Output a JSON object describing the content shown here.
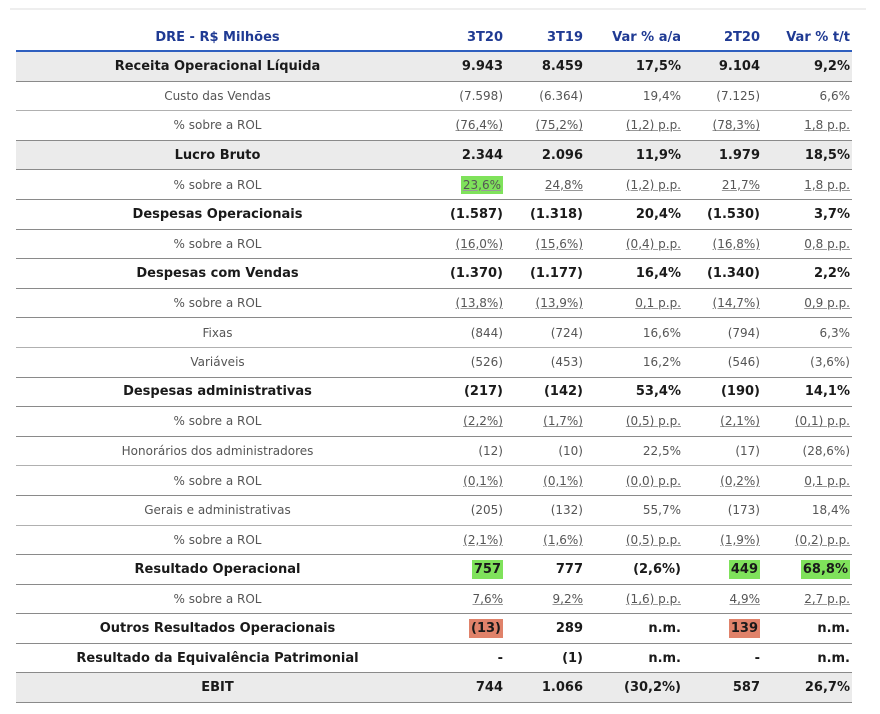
{
  "table": {
    "headers": [
      "DRE - R$ Milhões",
      "3T20",
      "3T19",
      "Var % a/a",
      "2T20",
      "Var % t/t"
    ],
    "rows": [
      {
        "label": "Receita Operacional Líquida",
        "values": [
          "9.943",
          "8.459",
          "17,5%",
          "9.104",
          "9,2%"
        ]
      },
      {
        "label": "Custo das Vendas",
        "values": [
          "(7.598)",
          "(6.364)",
          "19,4%",
          "(7.125)",
          "6,6%"
        ]
      },
      {
        "label": "% sobre a ROL",
        "values": [
          "(76,4%)",
          "(75,2%)",
          "(1,2) p.p.",
          "(78,3%)",
          "1,8 p.p."
        ]
      },
      {
        "label": "Lucro Bruto",
        "values": [
          "2.344",
          "2.096",
          "11,9%",
          "1.979",
          "18,5%"
        ]
      },
      {
        "label": "% sobre a ROL",
        "values": [
          "23,6%",
          "24,8%",
          "(1,2) p.p.",
          "21,7%",
          "1,8 p.p."
        ]
      },
      {
        "label": "Despesas Operacionais",
        "values": [
          "(1.587)",
          "(1.318)",
          "20,4%",
          "(1.530)",
          "3,7%"
        ]
      },
      {
        "label": "% sobre a ROL",
        "values": [
          "(16,0%)",
          "(15,6%)",
          "(0,4) p.p.",
          "(16,8%)",
          "0,8 p.p."
        ]
      },
      {
        "label": "Despesas com Vendas",
        "values": [
          "(1.370)",
          "(1.177)",
          "16,4%",
          "(1.340)",
          "2,2%"
        ]
      },
      {
        "label": "% sobre a ROL",
        "values": [
          "(13,8%)",
          "(13,9%)",
          "0,1 p.p.",
          "(14,7%)",
          "0,9 p.p."
        ]
      },
      {
        "label": "Fixas",
        "values": [
          "(844)",
          "(724)",
          "16,6%",
          "(794)",
          "6,3%"
        ]
      },
      {
        "label": "Variáveis",
        "values": [
          "(526)",
          "(453)",
          "16,2%",
          "(546)",
          "(3,6%)"
        ]
      },
      {
        "label": "Despesas administrativas",
        "values": [
          "(217)",
          "(142)",
          "53,4%",
          "(190)",
          "14,1%"
        ]
      },
      {
        "label": "% sobre a ROL",
        "values": [
          "(2,2%)",
          "(1,7%)",
          "(0,5) p.p.",
          "(2,1%)",
          "(0,1) p.p."
        ]
      },
      {
        "label": "Honorários dos administradores",
        "values": [
          "(12)",
          "(10)",
          "22,5%",
          "(17)",
          "(28,6%)"
        ]
      },
      {
        "label": "% sobre a ROL",
        "values": [
          "(0,1%)",
          "(0,1%)",
          "(0,0) p.p.",
          "(0,2%)",
          "0,1 p.p."
        ]
      },
      {
        "label": "Gerais e administrativas",
        "values": [
          "(205)",
          "(132)",
          "55,7%",
          "(173)",
          "18,4%"
        ]
      },
      {
        "label": "% sobre a ROL",
        "values": [
          "(2,1%)",
          "(1,6%)",
          "(0,5) p.p.",
          "(1,9%)",
          "(0,2) p.p."
        ]
      },
      {
        "label": "Resultado Operacional",
        "values": [
          "757",
          "777",
          "(2,6%)",
          "449",
          "68,8%"
        ]
      },
      {
        "label": "% sobre a ROL",
        "values": [
          "7,6%",
          "9,2%",
          "(1,6) p.p.",
          "4,9%",
          "2,7 p.p."
        ]
      },
      {
        "label": "Outros Resultados Operacionais",
        "values": [
          "(13)",
          "289",
          "n.m.",
          "139",
          "n.m."
        ]
      },
      {
        "label": "Resultado da Equivalência Patrimonial",
        "values": [
          "-",
          "(1)",
          "n.m.",
          "-",
          "n.m."
        ]
      },
      {
        "label": "EBIT",
        "values": [
          "744",
          "1.066",
          "(30,2%)",
          "587",
          "26,7%"
        ]
      }
    ]
  },
  "highlight_colors": {
    "green": "#7fe25b",
    "red": "#e0826a"
  }
}
